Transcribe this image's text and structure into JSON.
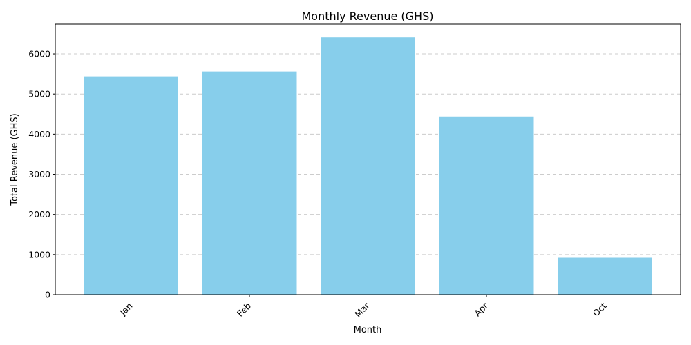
{
  "chart_data": {
    "type": "bar",
    "title": "Monthly Revenue (GHS)",
    "xlabel": "Month",
    "ylabel": "Total Revenue (GHS)",
    "categories": [
      "Jan",
      "Feb",
      "Mar",
      "Apr",
      "Oct"
    ],
    "values": [
      5440,
      5560,
      6410,
      4440,
      920
    ],
    "ylim": [
      0,
      6740
    ],
    "yticks": [
      "0",
      "1000",
      "2000",
      "3000",
      "4000",
      "5000",
      "6000"
    ],
    "grid": "y-dashed",
    "bar_color": "#87CEEB",
    "xtick_rotation_deg": 45
  }
}
